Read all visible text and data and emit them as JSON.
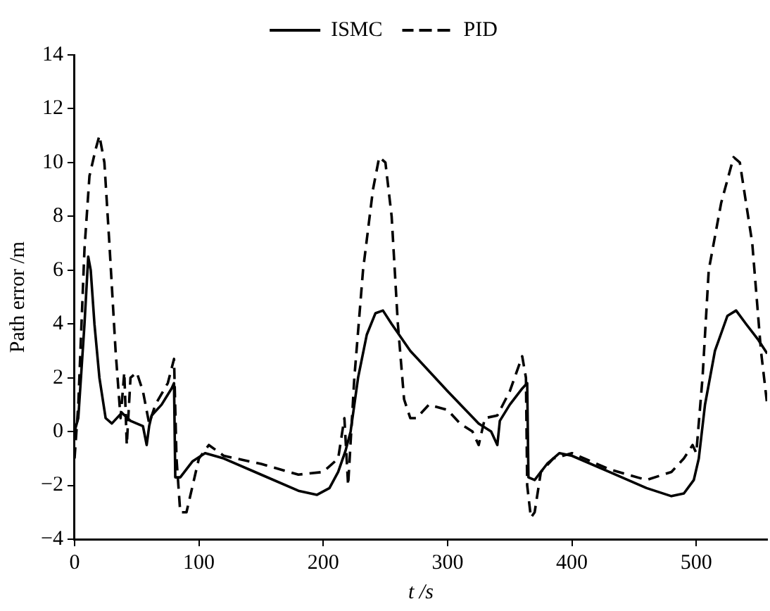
{
  "chart_data": {
    "type": "line",
    "xlabel": "t /s",
    "ylabel": "Path error /m",
    "xlim": [
      0,
      557
    ],
    "xticks": [
      0,
      100,
      200,
      300,
      400,
      500
    ],
    "ylim": [
      -4,
      14
    ],
    "yticks": [
      -4,
      -2,
      0,
      2,
      4,
      6,
      8,
      10,
      12,
      14
    ],
    "grid": false,
    "legend": "top",
    "marker": "none",
    "series": [
      {
        "name": "ISMC",
        "color": "#000000",
        "line_style": "solid",
        "x": [
          0,
          3,
          8,
          11,
          13,
          16,
          20,
          25,
          30,
          38,
          45,
          55,
          58,
          60,
          62,
          70,
          78,
          80,
          81,
          85,
          95,
          105,
          120,
          150,
          180,
          195,
          205,
          212,
          218,
          222,
          228,
          235,
          242,
          248,
          255,
          270,
          300,
          325,
          335,
          340,
          342,
          350,
          360,
          364,
          365,
          370,
          380,
          390,
          400,
          430,
          460,
          480,
          490,
          498,
          502,
          507,
          515,
          525,
          532,
          540,
          550,
          557
        ],
        "values": [
          0,
          0.5,
          4,
          6.5,
          6,
          4,
          2,
          0.5,
          0.3,
          0.7,
          0.4,
          0.2,
          -0.5,
          0.2,
          0.6,
          1,
          1.6,
          1.8,
          -1.7,
          -1.7,
          -1.1,
          -0.8,
          -1,
          -1.6,
          -2.2,
          -2.35,
          -2.1,
          -1.5,
          -0.7,
          0,
          2,
          3.6,
          4.4,
          4.5,
          4,
          3,
          1.5,
          0.3,
          0,
          -0.5,
          0.4,
          1,
          1.6,
          1.8,
          -1.7,
          -1.8,
          -1.2,
          -0.8,
          -0.9,
          -1.5,
          -2.1,
          -2.4,
          -2.3,
          -1.8,
          -1,
          1,
          3,
          4.3,
          4.5,
          4,
          3.4,
          2.9
        ]
      },
      {
        "name": "PID",
        "color": "#000000",
        "line_style": "dashed",
        "x": [
          0,
          3,
          8,
          12,
          17,
          20,
          24,
          28,
          33,
          37,
          40,
          42,
          45,
          50,
          55,
          60,
          65,
          75,
          80,
          82,
          85,
          90,
          95,
          100,
          108,
          120,
          150,
          180,
          200,
          212,
          217,
          220,
          225,
          232,
          240,
          245,
          250,
          255,
          260,
          265,
          270,
          275,
          285,
          300,
          310,
          320,
          325,
          330,
          340,
          350,
          360,
          363,
          364,
          367,
          370,
          375,
          385,
          400,
          430,
          460,
          480,
          490,
          497,
          500,
          505,
          510,
          520,
          530,
          535,
          545,
          552,
          557
        ],
        "values": [
          -1,
          1,
          6.8,
          9.5,
          10.5,
          11,
          10,
          7,
          3,
          0.5,
          2.2,
          -0.5,
          2,
          2.2,
          1.5,
          0.3,
          1,
          1.8,
          2.7,
          -1,
          -3,
          -3,
          -2,
          -1,
          -0.5,
          -0.9,
          -1.2,
          -1.6,
          -1.5,
          -1,
          0.5,
          -2,
          2,
          6,
          9,
          10.2,
          10,
          8,
          4,
          1.2,
          0.5,
          0.5,
          1,
          0.8,
          0.3,
          0,
          -0.5,
          0.5,
          0.6,
          1.5,
          2.8,
          2,
          -2,
          -3.2,
          -3,
          -1.5,
          -1,
          -0.8,
          -1.4,
          -1.8,
          -1.5,
          -1,
          -0.5,
          -0.8,
          2,
          6,
          8.5,
          10.2,
          10,
          7,
          3,
          1
        ]
      }
    ]
  }
}
